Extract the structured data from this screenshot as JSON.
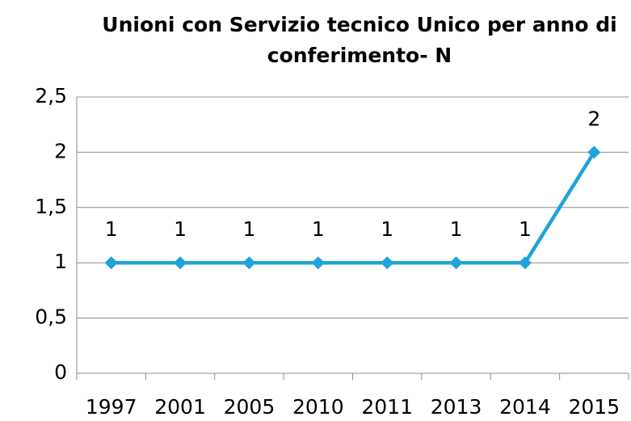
{
  "chart_data": {
    "type": "line",
    "title": "Unioni con Servizio tecnico Unico per anno di conferimento- N",
    "categories": [
      "1997",
      "2001",
      "2005",
      "2010",
      "2011",
      "2013",
      "2014",
      "2015"
    ],
    "series": [
      {
        "name": "N",
        "color": "#1fa3d8",
        "values": [
          1,
          1,
          1,
          1,
          1,
          1,
          1,
          2
        ]
      }
    ],
    "ylim": [
      0,
      2.5
    ],
    "yticks": [
      0,
      {
        "value": 0.5,
        "label": "0,5"
      },
      1,
      {
        "value": 1.5,
        "label": "1,5"
      },
      2,
      {
        "value": 2.5,
        "label": "2,5"
      }
    ],
    "grid": true,
    "data_labels": true
  }
}
